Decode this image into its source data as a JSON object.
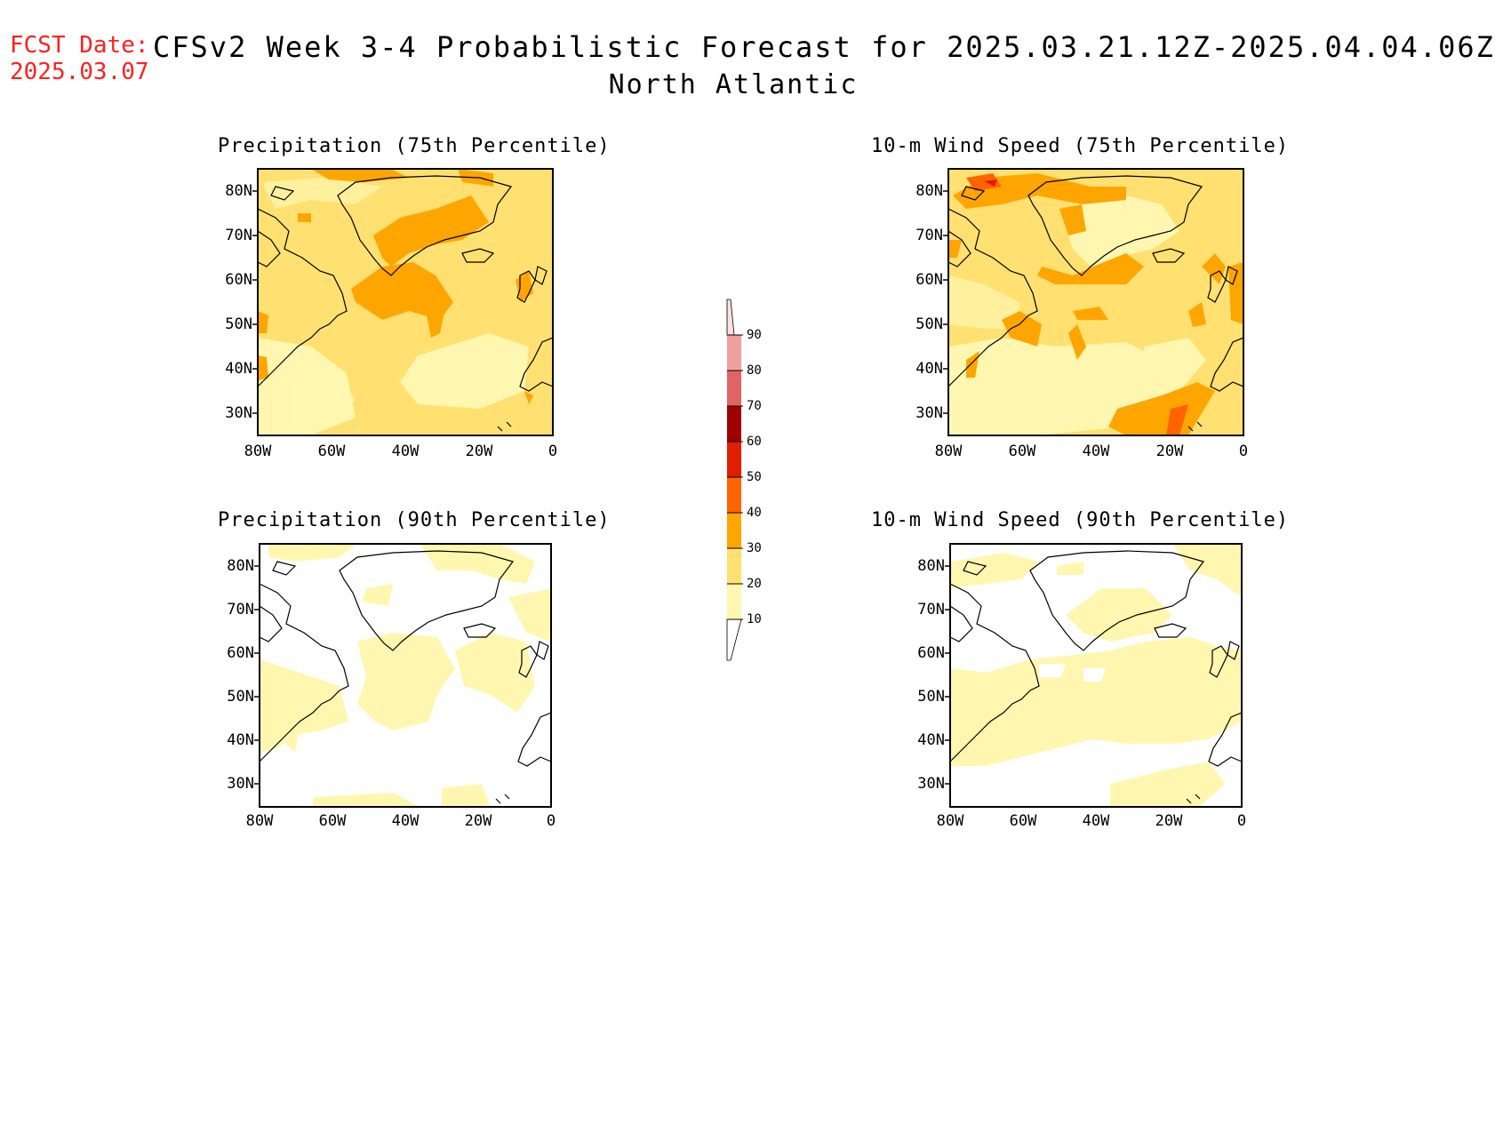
{
  "header": {
    "fcst_label": "FCST Date:",
    "fcst_date": "2025.03.07",
    "title": "CFSv2 Week 3-4 Probabilistic Forecast for 2025.03.21.12Z-2025.04.04.06Z",
    "region": "North Atlantic"
  },
  "panels": [
    {
      "title": "Precipitation (75th Percentile)"
    },
    {
      "title": "10-m Wind Speed (75th Percentile)"
    },
    {
      "title": "Precipitation (90th Percentile)"
    },
    {
      "title": "10-m Wind Speed (90th Percentile)"
    }
  ],
  "axes": {
    "lat_labels": [
      "80N",
      "70N",
      "60N",
      "50N",
      "40N",
      "30N"
    ],
    "lon_labels": [
      "80W",
      "60W",
      "40W",
      "20W",
      "0"
    ]
  },
  "colorbar": {
    "labels": [
      "90",
      "80",
      "70",
      "60",
      "50",
      "40",
      "30",
      "20",
      "10"
    ],
    "colors": {
      "10-20": "#fff7b0",
      "20-30": "#ffe070",
      "30-40": "#ffa500",
      "40-50": "#ff6400",
      "50-60": "#e01e00",
      "60-70": "#a00000",
      "70-80": "#e06464",
      "80-90": "#f0a0a0",
      "90+": "#ffe0e0"
    }
  }
}
